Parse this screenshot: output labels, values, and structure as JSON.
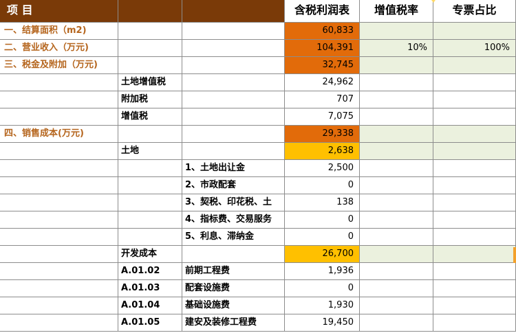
{
  "header": {
    "item_label": "项 目",
    "col_d": "含税利润表",
    "col_e": "增值税率",
    "col_f": "专票占比"
  },
  "rows": {
    "r1": {
      "label": "一、结算面积（m2)",
      "value": "60,833"
    },
    "r2": {
      "label": "二、营业收入（万元)",
      "value": "104,391",
      "rate": "10%",
      "share": "100%"
    },
    "r3": {
      "label": "三、税金及附加（万元)",
      "value": "32,745"
    },
    "r4": {
      "label": "土地增值税",
      "value": "24,962"
    },
    "r5": {
      "label": "附加税",
      "value": "707"
    },
    "r6": {
      "label": "增值税",
      "value": "7,075"
    },
    "r7": {
      "label": "四、销售成本(万元)",
      "value": "29,338"
    },
    "r8": {
      "label": "土地",
      "value": "2,638"
    },
    "r9": {
      "label": "1、土地出让金",
      "value": "2,500"
    },
    "r10": {
      "label": "2、市政配套",
      "value": "0"
    },
    "r11": {
      "label": "3、契税、印花税、土",
      "value": "138"
    },
    "r12": {
      "label": "4、指标费、交易服务",
      "value": "0"
    },
    "r13": {
      "label": "5、利息、滞纳金",
      "value": "0"
    },
    "r14": {
      "label": "开发成本",
      "value": "26,700"
    },
    "r15": {
      "code": "A.01.02",
      "label": "前期工程费",
      "value": "1,936"
    },
    "r16": {
      "code": "A.01.03",
      "label": "配套设施费",
      "value": "0"
    },
    "r17": {
      "code": "A.01.04",
      "label": "基础设施费",
      "value": "1,930"
    },
    "r18": {
      "code": "A.01.05",
      "label": "建安及装修工程费",
      "value": "19,450"
    }
  },
  "colors": {
    "header_brown": "#7a3a08",
    "section_text": "#b5651d",
    "orange_fill": "#e26b0a",
    "yellow_fill": "#ffc000",
    "green_fill": "#ebf1de"
  }
}
